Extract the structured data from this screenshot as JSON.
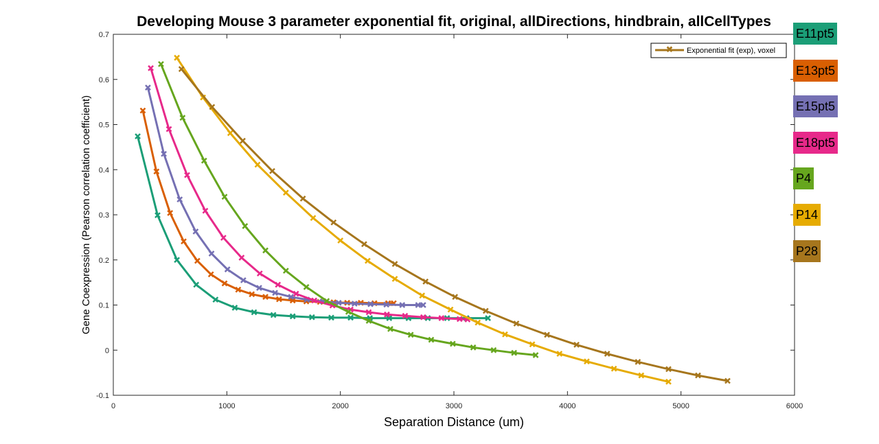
{
  "chart_data": {
    "type": "line",
    "title": "Developing Mouse 3 parameter exponential fit, original, allDirections, hindbrain, allCellTypes",
    "xlabel": "Separation Distance (um)",
    "ylabel": "Gene Coexpression (Pearson correlation coefficient)",
    "xlim": [
      0,
      6000
    ],
    "ylim": [
      -0.1,
      0.7
    ],
    "xticks": [
      "0",
      "1000",
      "2000",
      "3000",
      "4000",
      "5000",
      "6000"
    ],
    "yticks": [
      "-0.1",
      "0",
      "0.1",
      "0.2",
      "0.3",
      "0.4",
      "0.5",
      "0.6",
      "0.7"
    ],
    "grid": false,
    "legend": {
      "label": "Exponential fit (exp), voxel",
      "placement": "top-right",
      "color": "#a6761d"
    },
    "series": [
      {
        "name": "E11pt5",
        "color": "#1b9e77",
        "x": [
          215,
          390,
          560,
          730,
          900,
          1070,
          1240,
          1410,
          1580,
          1750,
          1920,
          2090,
          2260,
          2430,
          2600,
          2770,
          2940,
          3110,
          3300
        ],
        "y": [
          0.474,
          0.299,
          0.2,
          0.145,
          0.112,
          0.094,
          0.084,
          0.078,
          0.075,
          0.073,
          0.072,
          0.072,
          0.071,
          0.071,
          0.071,
          0.071,
          0.071,
          0.071,
          0.071
        ]
      },
      {
        "name": "E13pt5",
        "color": "#d95f02",
        "x": [
          260,
          380,
          500,
          620,
          740,
          860,
          980,
          1100,
          1220,
          1340,
          1460,
          1580,
          1700,
          1820,
          1940,
          2060,
          2180,
          2300,
          2420,
          2470
        ],
        "y": [
          0.531,
          0.396,
          0.304,
          0.241,
          0.198,
          0.168,
          0.148,
          0.134,
          0.124,
          0.118,
          0.113,
          0.11,
          0.108,
          0.107,
          0.106,
          0.105,
          0.105,
          0.104,
          0.104,
          0.104
        ]
      },
      {
        "name": "E15pt5",
        "color": "#7570b3",
        "x": [
          305,
          445,
          585,
          725,
          865,
          1005,
          1145,
          1285,
          1425,
          1565,
          1705,
          1845,
          1985,
          2125,
          2265,
          2405,
          2545,
          2685,
          2730
        ],
        "y": [
          0.582,
          0.435,
          0.334,
          0.263,
          0.214,
          0.179,
          0.155,
          0.138,
          0.127,
          0.118,
          0.112,
          0.108,
          0.105,
          0.103,
          0.102,
          0.101,
          0.1,
          0.1,
          0.1
        ]
      },
      {
        "name": "E18pt5",
        "color": "#e7298a",
        "x": [
          330,
          490,
          650,
          810,
          970,
          1130,
          1290,
          1450,
          1610,
          1770,
          1930,
          2090,
          2250,
          2410,
          2570,
          2730,
          2890,
          3050,
          3120
        ],
        "y": [
          0.625,
          0.49,
          0.388,
          0.309,
          0.249,
          0.205,
          0.17,
          0.145,
          0.125,
          0.11,
          0.099,
          0.09,
          0.084,
          0.079,
          0.076,
          0.073,
          0.071,
          0.069,
          0.068
        ]
      },
      {
        "name": "P4",
        "color": "#66a61e",
        "x": [
          420,
          610,
          800,
          980,
          1160,
          1340,
          1520,
          1700,
          1880,
          2070,
          2250,
          2440,
          2620,
          2800,
          2990,
          3170,
          3350,
          3530,
          3720
        ],
        "y": [
          0.634,
          0.515,
          0.42,
          0.34,
          0.275,
          0.221,
          0.176,
          0.14,
          0.109,
          0.085,
          0.065,
          0.047,
          0.034,
          0.023,
          0.014,
          0.006,
          0.0,
          -0.006,
          -0.011
        ]
      },
      {
        "name": "P14",
        "color": "#e6ab02",
        "x": [
          560,
          790,
          1030,
          1270,
          1520,
          1760,
          2000,
          2240,
          2480,
          2720,
          2970,
          3210,
          3450,
          3690,
          3930,
          4170,
          4410,
          4650,
          4890
        ],
        "y": [
          0.648,
          0.56,
          0.481,
          0.411,
          0.349,
          0.293,
          0.243,
          0.198,
          0.158,
          0.121,
          0.09,
          0.061,
          0.035,
          0.013,
          -0.008,
          -0.025,
          -0.041,
          -0.056,
          -0.07
        ]
      },
      {
        "name": "P28",
        "color": "#a6761d",
        "x": [
          600,
          870,
          1140,
          1400,
          1670,
          1940,
          2210,
          2480,
          2750,
          3010,
          3280,
          3550,
          3820,
          4080,
          4350,
          4620,
          4890,
          5150,
          5410
        ],
        "y": [
          0.623,
          0.539,
          0.464,
          0.397,
          0.336,
          0.283,
          0.235,
          0.191,
          0.152,
          0.118,
          0.087,
          0.059,
          0.034,
          0.012,
          -0.008,
          -0.026,
          -0.042,
          -0.056,
          -0.068
        ]
      }
    ]
  }
}
